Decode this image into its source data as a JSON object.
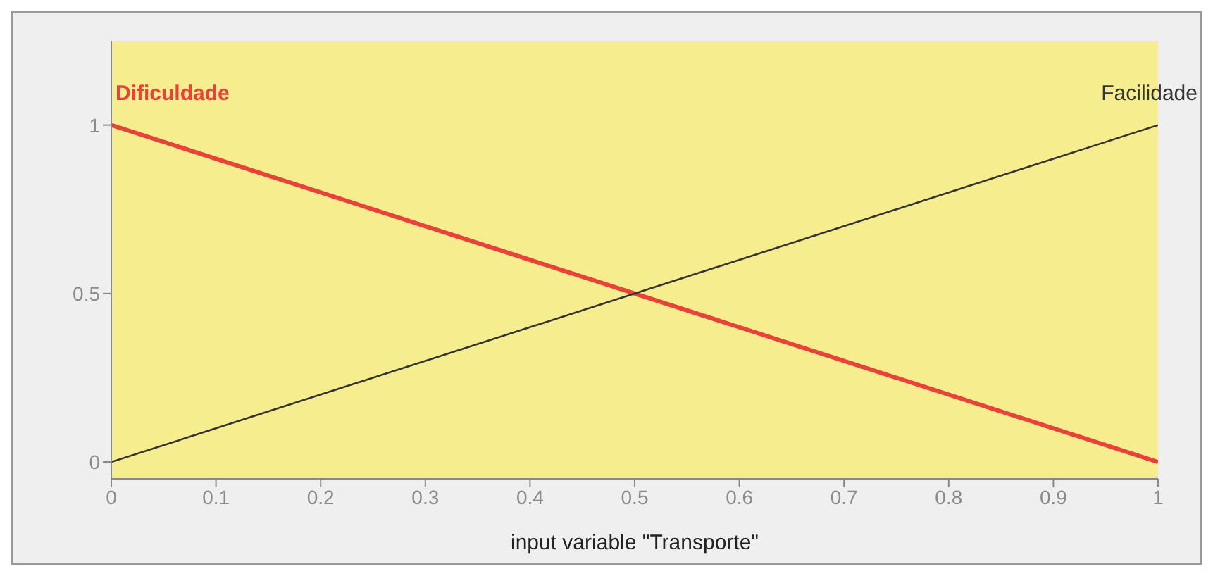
{
  "chart_data": {
    "type": "line",
    "xlabel": "input variable \"Transporte\"",
    "x": [
      0,
      1
    ],
    "series": [
      {
        "name": "Dificuldade",
        "color": "#e8423a",
        "values": [
          1,
          0
        ]
      },
      {
        "name": "Facilidade",
        "color": "#333333",
        "values": [
          0,
          1
        ]
      }
    ],
    "xlim": [
      0,
      1
    ],
    "xticks": [
      0,
      0.1,
      0.2,
      0.3,
      0.4,
      0.5,
      0.6,
      0.7,
      0.8,
      0.9,
      1
    ],
    "ylim": [
      -0.05,
      1.25
    ],
    "yticks": [
      0,
      0.5,
      1
    ],
    "grid": false,
    "marker": "none",
    "line_style": "solid"
  }
}
